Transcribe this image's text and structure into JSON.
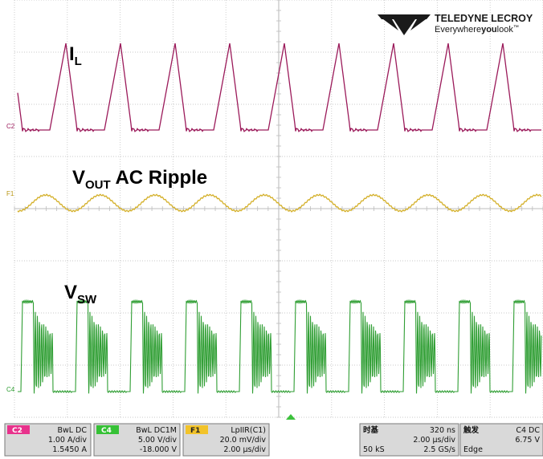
{
  "brand": {
    "name": "TELEDYNE LECROY",
    "tagline_prefix": "Everywhere",
    "tagline_bold": "you",
    "tagline_suffix": "look",
    "trademark": "™"
  },
  "traces": {
    "il": {
      "label_main": "I",
      "label_sub": "L",
      "marker": "C2",
      "color": "#9b1a5a"
    },
    "vout": {
      "label_main": "V",
      "label_sub": "OUT",
      "label_rest": " AC Ripple",
      "marker": "F1",
      "color": "#d4b02a"
    },
    "vsw": {
      "label_main": "V",
      "label_sub": "SW",
      "marker": "C4",
      "color": "#2f9e33"
    }
  },
  "channels": [
    {
      "tag": "C2",
      "tag_color": "#e8328c",
      "coupling": "BwL DC",
      "scale": "1.00 A/div",
      "offset": "1.5450 A"
    },
    {
      "tag": "C4",
      "tag_color": "#36c136",
      "coupling": "BwL DC1M",
      "scale": "5.00 V/div",
      "offset": "-18.000 V"
    },
    {
      "tag": "F1",
      "tag_color": "#f2c32a",
      "coupling": "LpIIR(C1)",
      "scale": "20.0 mV/div",
      "offset": "2.00 µs/div"
    }
  ],
  "timebase": {
    "title": "时基",
    "delay": "320 ns",
    "div": "2.00 µs/div",
    "samples": "50 kS",
    "rate": "2.5 GS/s"
  },
  "trigger": {
    "title": "触发",
    "source": "C4 DC",
    "level": "6.75 V",
    "mode": "Edge"
  }
}
